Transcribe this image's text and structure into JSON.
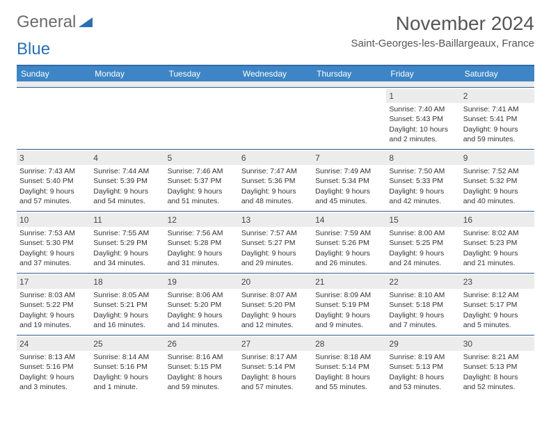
{
  "brand": {
    "word1": "General",
    "word2": "Blue"
  },
  "title": "November 2024",
  "location": "Saint-Georges-les-Baillargeaux, France",
  "colors": {
    "header_bg": "#3d85c6",
    "header_border": "#326aa6",
    "week_divider": "#2f5a88",
    "daynum_bg": "#ececec",
    "text": "#333333",
    "brand_gray": "#6b6b6b",
    "brand_blue": "#2a6fb3"
  },
  "weekdays": [
    "Sunday",
    "Monday",
    "Tuesday",
    "Wednesday",
    "Thursday",
    "Friday",
    "Saturday"
  ],
  "weeks": [
    [
      {
        "n": "",
        "lines": []
      },
      {
        "n": "",
        "lines": []
      },
      {
        "n": "",
        "lines": []
      },
      {
        "n": "",
        "lines": []
      },
      {
        "n": "",
        "lines": []
      },
      {
        "n": "1",
        "lines": [
          "Sunrise: 7:40 AM",
          "Sunset: 5:43 PM",
          "Daylight: 10 hours and 2 minutes."
        ]
      },
      {
        "n": "2",
        "lines": [
          "Sunrise: 7:41 AM",
          "Sunset: 5:41 PM",
          "Daylight: 9 hours and 59 minutes."
        ]
      }
    ],
    [
      {
        "n": "3",
        "lines": [
          "Sunrise: 7:43 AM",
          "Sunset: 5:40 PM",
          "Daylight: 9 hours and 57 minutes."
        ]
      },
      {
        "n": "4",
        "lines": [
          "Sunrise: 7:44 AM",
          "Sunset: 5:39 PM",
          "Daylight: 9 hours and 54 minutes."
        ]
      },
      {
        "n": "5",
        "lines": [
          "Sunrise: 7:46 AM",
          "Sunset: 5:37 PM",
          "Daylight: 9 hours and 51 minutes."
        ]
      },
      {
        "n": "6",
        "lines": [
          "Sunrise: 7:47 AM",
          "Sunset: 5:36 PM",
          "Daylight: 9 hours and 48 minutes."
        ]
      },
      {
        "n": "7",
        "lines": [
          "Sunrise: 7:49 AM",
          "Sunset: 5:34 PM",
          "Daylight: 9 hours and 45 minutes."
        ]
      },
      {
        "n": "8",
        "lines": [
          "Sunrise: 7:50 AM",
          "Sunset: 5:33 PM",
          "Daylight: 9 hours and 42 minutes."
        ]
      },
      {
        "n": "9",
        "lines": [
          "Sunrise: 7:52 AM",
          "Sunset: 5:32 PM",
          "Daylight: 9 hours and 40 minutes."
        ]
      }
    ],
    [
      {
        "n": "10",
        "lines": [
          "Sunrise: 7:53 AM",
          "Sunset: 5:30 PM",
          "Daylight: 9 hours and 37 minutes."
        ]
      },
      {
        "n": "11",
        "lines": [
          "Sunrise: 7:55 AM",
          "Sunset: 5:29 PM",
          "Daylight: 9 hours and 34 minutes."
        ]
      },
      {
        "n": "12",
        "lines": [
          "Sunrise: 7:56 AM",
          "Sunset: 5:28 PM",
          "Daylight: 9 hours and 31 minutes."
        ]
      },
      {
        "n": "13",
        "lines": [
          "Sunrise: 7:57 AM",
          "Sunset: 5:27 PM",
          "Daylight: 9 hours and 29 minutes."
        ]
      },
      {
        "n": "14",
        "lines": [
          "Sunrise: 7:59 AM",
          "Sunset: 5:26 PM",
          "Daylight: 9 hours and 26 minutes."
        ]
      },
      {
        "n": "15",
        "lines": [
          "Sunrise: 8:00 AM",
          "Sunset: 5:25 PM",
          "Daylight: 9 hours and 24 minutes."
        ]
      },
      {
        "n": "16",
        "lines": [
          "Sunrise: 8:02 AM",
          "Sunset: 5:23 PM",
          "Daylight: 9 hours and 21 minutes."
        ]
      }
    ],
    [
      {
        "n": "17",
        "lines": [
          "Sunrise: 8:03 AM",
          "Sunset: 5:22 PM",
          "Daylight: 9 hours and 19 minutes."
        ]
      },
      {
        "n": "18",
        "lines": [
          "Sunrise: 8:05 AM",
          "Sunset: 5:21 PM",
          "Daylight: 9 hours and 16 minutes."
        ]
      },
      {
        "n": "19",
        "lines": [
          "Sunrise: 8:06 AM",
          "Sunset: 5:20 PM",
          "Daylight: 9 hours and 14 minutes."
        ]
      },
      {
        "n": "20",
        "lines": [
          "Sunrise: 8:07 AM",
          "Sunset: 5:20 PM",
          "Daylight: 9 hours and 12 minutes."
        ]
      },
      {
        "n": "21",
        "lines": [
          "Sunrise: 8:09 AM",
          "Sunset: 5:19 PM",
          "Daylight: 9 hours and 9 minutes."
        ]
      },
      {
        "n": "22",
        "lines": [
          "Sunrise: 8:10 AM",
          "Sunset: 5:18 PM",
          "Daylight: 9 hours and 7 minutes."
        ]
      },
      {
        "n": "23",
        "lines": [
          "Sunrise: 8:12 AM",
          "Sunset: 5:17 PM",
          "Daylight: 9 hours and 5 minutes."
        ]
      }
    ],
    [
      {
        "n": "24",
        "lines": [
          "Sunrise: 8:13 AM",
          "Sunset: 5:16 PM",
          "Daylight: 9 hours and 3 minutes."
        ]
      },
      {
        "n": "25",
        "lines": [
          "Sunrise: 8:14 AM",
          "Sunset: 5:16 PM",
          "Daylight: 9 hours and 1 minute."
        ]
      },
      {
        "n": "26",
        "lines": [
          "Sunrise: 8:16 AM",
          "Sunset: 5:15 PM",
          "Daylight: 8 hours and 59 minutes."
        ]
      },
      {
        "n": "27",
        "lines": [
          "Sunrise: 8:17 AM",
          "Sunset: 5:14 PM",
          "Daylight: 8 hours and 57 minutes."
        ]
      },
      {
        "n": "28",
        "lines": [
          "Sunrise: 8:18 AM",
          "Sunset: 5:14 PM",
          "Daylight: 8 hours and 55 minutes."
        ]
      },
      {
        "n": "29",
        "lines": [
          "Sunrise: 8:19 AM",
          "Sunset: 5:13 PM",
          "Daylight: 8 hours and 53 minutes."
        ]
      },
      {
        "n": "30",
        "lines": [
          "Sunrise: 8:21 AM",
          "Sunset: 5:13 PM",
          "Daylight: 8 hours and 52 minutes."
        ]
      }
    ]
  ]
}
